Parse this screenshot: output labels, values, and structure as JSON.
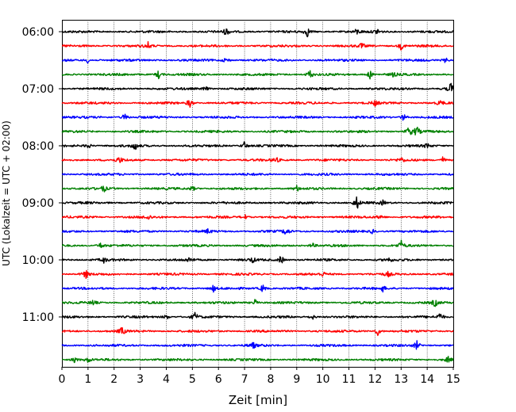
{
  "chart_data": {
    "type": "line",
    "subtype": "helicorder",
    "xlabel": "Zeit  [min]",
    "ylabel": "UTC (Lokalzeit = UTC + 02:00)",
    "xlim": [
      0,
      15
    ],
    "xticks": [
      "0",
      "1",
      "2",
      "3",
      "4",
      "5",
      "6",
      "7",
      "8",
      "9",
      "10",
      "11",
      "12",
      "13",
      "14",
      "15"
    ],
    "grid": "vertical dotted",
    "line_interval_minutes": 15,
    "rows": [
      "06:00",
      "06:15",
      "06:30",
      "06:45",
      "07:00",
      "07:15",
      "07:30",
      "07:45",
      "08:00",
      "08:15",
      "08:30",
      "08:45",
      "09:00",
      "09:15",
      "09:30",
      "09:45",
      "10:00",
      "10:15",
      "10:30",
      "10:45",
      "11:00",
      "11:15",
      "11:30",
      "11:45"
    ],
    "ytick_labels": [
      "06:00",
      "07:00",
      "08:00",
      "09:00",
      "10:00",
      "11:00"
    ],
    "colors": [
      "#000000",
      "#ff0000",
      "#0000ff",
      "#008000"
    ],
    "events": [
      [
        [
          6.3,
          0.7
        ],
        [
          9.4,
          0.9
        ],
        [
          11.3,
          0.5
        ],
        [
          12.1,
          0.6
        ]
      ],
      [
        [
          3.3,
          0.6
        ],
        [
          11.5,
          0.5
        ],
        [
          13.0,
          0.7
        ]
      ],
      [
        [
          1.0,
          0.5
        ],
        [
          6.3,
          0.6
        ],
        [
          14.7,
          0.5
        ]
      ],
      [
        [
          3.7,
          0.8
        ],
        [
          9.5,
          0.9
        ],
        [
          11.8,
          0.8
        ],
        [
          12.7,
          0.4
        ]
      ],
      [
        [
          5.5,
          0.5
        ],
        [
          14.9,
          1.1
        ]
      ],
      [
        [
          4.9,
          0.9
        ],
        [
          12.0,
          0.5
        ],
        [
          14.5,
          0.5
        ]
      ],
      [
        [
          2.4,
          0.7
        ],
        [
          13.1,
          0.7
        ]
      ],
      [
        [
          13.3,
          1.0
        ],
        [
          13.6,
          1.0
        ]
      ],
      [
        [
          1.0,
          0.6
        ],
        [
          2.8,
          0.8
        ],
        [
          7.0,
          0.8
        ],
        [
          14.0,
          0.5
        ]
      ],
      [
        [
          2.2,
          0.6
        ],
        [
          8.2,
          0.6
        ],
        [
          13.0,
          0.5
        ],
        [
          14.6,
          0.6
        ]
      ],
      [],
      [
        [
          1.6,
          0.6
        ],
        [
          5.0,
          0.5
        ],
        [
          9.0,
          0.5
        ]
      ],
      [
        [
          11.3,
          1.3
        ],
        [
          12.3,
          0.4
        ]
      ],
      [
        [
          3.3,
          0.5
        ],
        [
          7.0,
          0.5
        ],
        [
          12.2,
          0.5
        ]
      ],
      [
        [
          5.6,
          0.4
        ],
        [
          8.6,
          0.8
        ],
        [
          11.9,
          0.4
        ]
      ],
      [
        [
          1.5,
          0.6
        ],
        [
          9.6,
          0.5
        ],
        [
          13.0,
          0.9
        ]
      ],
      [
        [
          1.6,
          0.5
        ],
        [
          4.9,
          0.5
        ],
        [
          7.3,
          0.5
        ],
        [
          8.4,
          0.9
        ],
        [
          12.5,
          0.5
        ]
      ],
      [
        [
          0.9,
          0.9
        ],
        [
          10.0,
          0.4
        ],
        [
          12.5,
          0.4
        ]
      ],
      [
        [
          5.8,
          0.6
        ],
        [
          7.7,
          0.8
        ],
        [
          12.3,
          0.5
        ]
      ],
      [
        [
          1.2,
          0.5
        ],
        [
          7.4,
          0.6
        ],
        [
          14.3,
          0.7
        ]
      ],
      [
        [
          4.0,
          0.5
        ],
        [
          5.1,
          0.8
        ],
        [
          9.6,
          0.5
        ],
        [
          14.5,
          0.9
        ]
      ],
      [
        [
          2.3,
          0.8
        ],
        [
          12.1,
          0.8
        ]
      ],
      [
        [
          7.3,
          0.7
        ],
        [
          13.6,
          0.8
        ]
      ],
      [
        [
          0.5,
          0.7
        ],
        [
          1.0,
          0.5
        ],
        [
          14.8,
          0.5
        ]
      ]
    ]
  }
}
